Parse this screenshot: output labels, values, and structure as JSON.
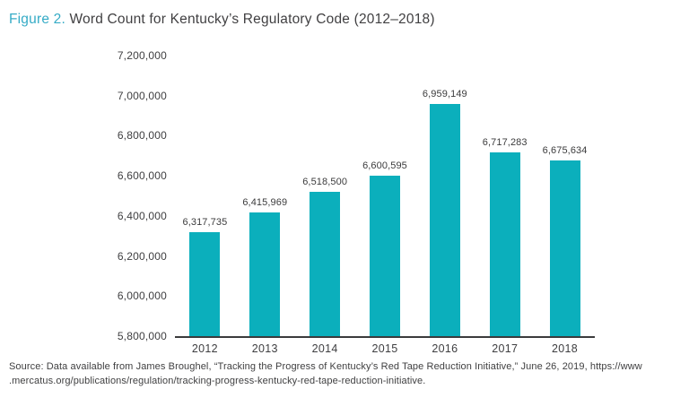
{
  "title": {
    "prefix": "Figure 2.",
    "text": " Word Count for Kentucky’s Regulatory Code (2012–2018)"
  },
  "source": {
    "line1": "Source: Data available from James Broughel, “Tracking the Progress of Kentucky’s Red Tape Reduction Initiative,” June 26, 2019, https://www",
    "line2": ".mercatus.org/publications/regulation/tracking-progress-kentucky-red-tape-reduction-initiative."
  },
  "colors": {
    "bar": "#0bafbc",
    "title_accent": "#35abc6",
    "text": "#3e3e40",
    "axis": "#3b3b3c"
  },
  "chart_data": {
    "type": "bar",
    "title": "Figure 2. Word Count for Kentucky's Regulatory Code (2012–2018)",
    "categories": [
      "2012",
      "2013",
      "2014",
      "2015",
      "2016",
      "2017",
      "2018"
    ],
    "values": [
      6317735,
      6415969,
      6518500,
      6600595,
      6959149,
      6717283,
      6675634
    ],
    "value_labels": [
      "6,317,735",
      "6,415,969",
      "6,518,500",
      "6,600,595",
      "6,959,149",
      "6,717,283",
      "6,675,634"
    ],
    "xlabel": "",
    "ylabel": "",
    "ylim": [
      5800000,
      7200000
    ],
    "y_ticks": [
      7200000,
      7000000,
      6800000,
      6600000,
      6400000,
      6200000,
      6000000,
      5800000
    ],
    "y_tick_labels": [
      "7,200,000",
      "7,000,000",
      "6,800,000",
      "6,600,000",
      "6,400,000",
      "6,200,000",
      "6,000,000",
      "5,800,000"
    ],
    "grid": false,
    "legend": false,
    "bar_color": "#0bafbc"
  }
}
